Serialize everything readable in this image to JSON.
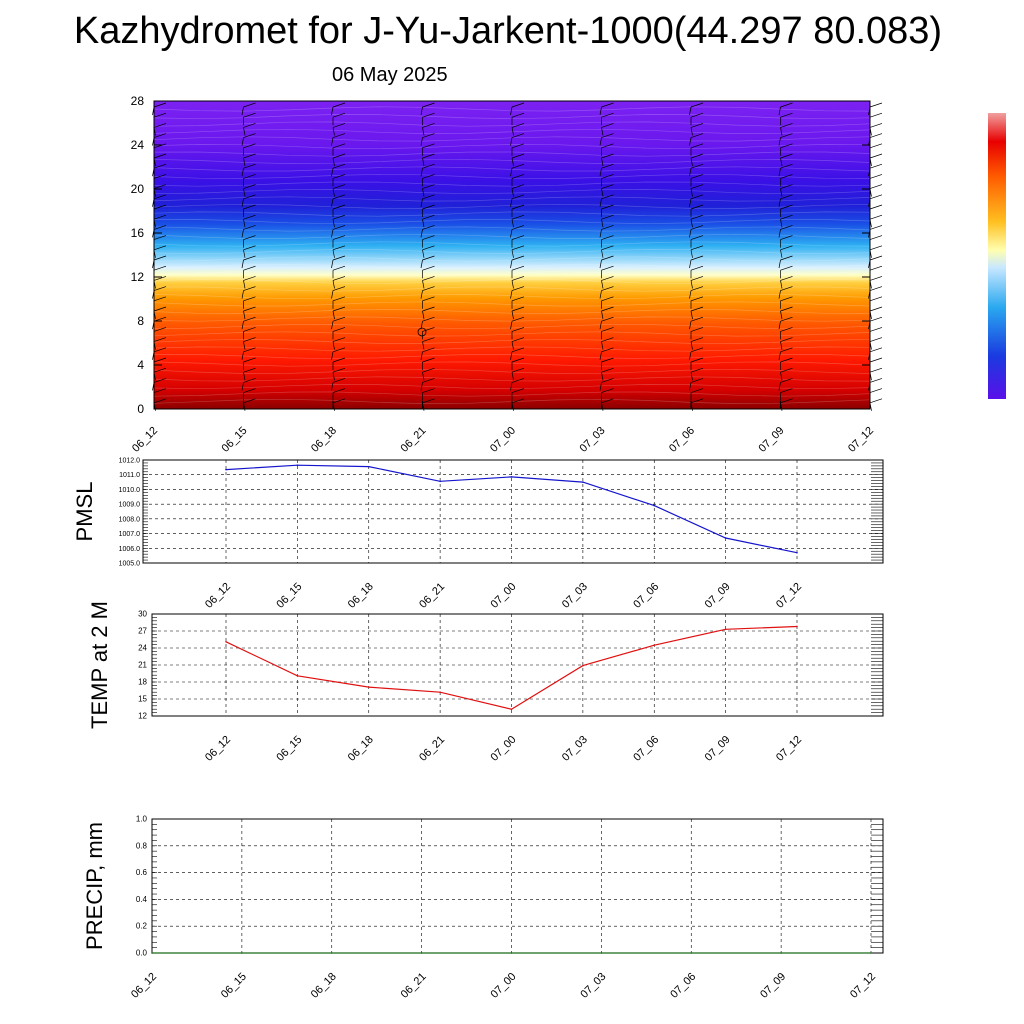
{
  "title": "Kazhydromet for J-Yu-Jarkent-1000(44.297 80.083)",
  "subtitle": "06 May 2025",
  "colors": {
    "pmsl": "#1515cc",
    "temp": "#e01010",
    "precip": "#1a6b1a",
    "grid": "#000000"
  },
  "chart_data": [
    {
      "type": "heatmap",
      "title": "",
      "x_ticks": [
        "06_12",
        "06_15",
        "06_18",
        "06_21",
        "07_00",
        "07_03",
        "07_06",
        "07_09",
        "07_12"
      ],
      "y_ticks": [
        "0",
        "4",
        "8",
        "12",
        "16",
        "20",
        "24",
        "28"
      ],
      "ylim": [
        0,
        28
      ],
      "colorbar_stops": [
        "#7a0000",
        "#c80000",
        "#ff2000",
        "#ff6a00",
        "#ffa500",
        "#ffd24a",
        "#ffffc0",
        "#c8e8ff",
        "#2aa8f0",
        "#1a4ae0",
        "#3a12e8",
        "#7a1ef0"
      ],
      "grid": false
    },
    {
      "type": "line",
      "ylabel": "PMSL",
      "categories": [
        "06_12",
        "06_15",
        "06_18",
        "06_21",
        "07_00",
        "07_03",
        "07_06",
        "07_09",
        "07_12"
      ],
      "y_ticks": [
        "1005.0",
        "1006.0",
        "1007.0",
        "1008.0",
        "1009.0",
        "1010.0",
        "1011.0",
        "1012.0"
      ],
      "ylim": [
        1005.0,
        1012.0
      ],
      "values": [
        1011.35,
        1011.65,
        1011.55,
        1010.55,
        1010.85,
        1010.5,
        1008.9,
        1006.7,
        1005.7
      ],
      "grid": true
    },
    {
      "type": "line",
      "ylabel": "TEMP at 2 M",
      "categories": [
        "06_12",
        "06_15",
        "06_18",
        "06_21",
        "07_00",
        "07_03",
        "07_06",
        "07_09",
        "07_12"
      ],
      "y_ticks": [
        "12",
        "15",
        "18",
        "21",
        "24",
        "27",
        "30"
      ],
      "ylim": [
        12,
        30
      ],
      "values": [
        25.1,
        19.1,
        17.1,
        16.2,
        13.2,
        20.9,
        24.5,
        27.3,
        27.8
      ],
      "grid": true
    },
    {
      "type": "line",
      "ylabel": "PRECIP, mm",
      "categories": [
        "06_12",
        "06_15",
        "06_18",
        "06_21",
        "07_00",
        "07_03",
        "07_06",
        "07_09",
        "07_12"
      ],
      "y_ticks": [
        "0.0",
        "0.2",
        "0.4",
        "0.6",
        "0.8",
        "1.0"
      ],
      "ylim": [
        0.0,
        1.0
      ],
      "values": [
        0,
        0,
        0,
        0,
        0,
        0,
        0,
        0,
        0
      ],
      "grid": true
    }
  ]
}
